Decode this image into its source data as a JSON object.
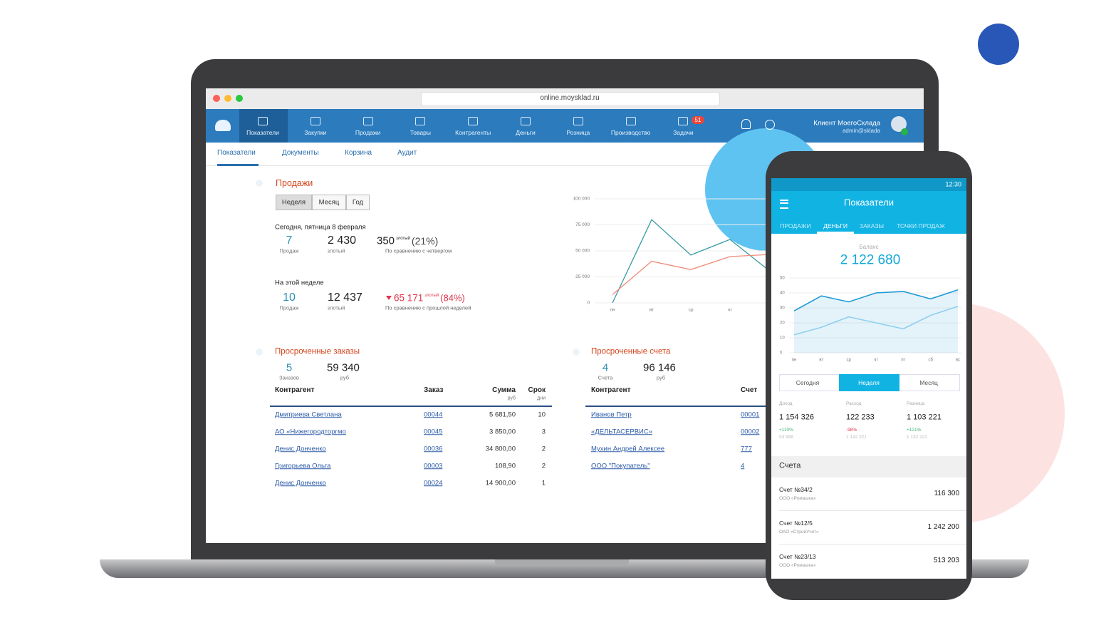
{
  "browser": {
    "url": "online.moysklad.ru"
  },
  "nav": {
    "items": [
      "Показатели",
      "Закупки",
      "Продажи",
      "Товары",
      "Контрагенты",
      "Деньги",
      "Розница",
      "Производство",
      "Задачи"
    ],
    "badge": "51",
    "user_name": "Клиент МоегоСклада",
    "user_login": "admin@sklada"
  },
  "subtabs": [
    "Показатели",
    "Документы",
    "Корзина",
    "Аудит"
  ],
  "sales": {
    "title": "Продажи",
    "periods": [
      "Неделя",
      "Месяц",
      "Год"
    ],
    "today": {
      "heading": "Сегодня, пятница 8 февраля",
      "count": "7",
      "count_label": "Продаж",
      "amount": "2 430",
      "amount_label": "злотый",
      "diff": "350",
      "diff_unit": "злотый",
      "diff_percent": "(21%)",
      "diff_label": "По сравнению с четвергом"
    },
    "week": {
      "heading": "На этой неделе",
      "count": "10",
      "count_label": "Продаж",
      "amount": "12 437",
      "amount_label": "злотый",
      "diff": "65 171",
      "diff_unit": "злотый",
      "diff_percent": "(84%)",
      "diff_label": "По сравнению с прошлой неделей"
    }
  },
  "orders": {
    "title": "Просроченные заказы",
    "count": "5",
    "count_label": "Заказов",
    "amount": "59 340",
    "amount_label": "руб",
    "headers": [
      "Контрагент",
      "Заказ",
      "Сумма",
      "Срок"
    ],
    "header_units": [
      "руб",
      "дни"
    ],
    "rows": [
      [
        "Дмитриева Светлана",
        "00044",
        "5 681,50",
        "10"
      ],
      [
        "АО «Нижегородторгмо",
        "00045",
        "3 850,00",
        "3"
      ],
      [
        "Денис Донченко",
        "00036",
        "34 800,00",
        "2"
      ],
      [
        "Григорьева Ольга",
        "00003",
        "108,90",
        "2"
      ],
      [
        "Денис Донченко",
        "00024",
        "14 900,00",
        "1"
      ]
    ]
  },
  "invoices": {
    "title": "Просроченные счета",
    "count": "4",
    "count_label": "Счета",
    "amount": "96 146",
    "amount_label": "руб",
    "headers": [
      "Контрагент",
      "Счет"
    ],
    "rows": [
      [
        "Иванов Петр",
        "00001"
      ],
      [
        "«ДЕЛЬТАСЕРВИС»",
        "00002"
      ],
      [
        "Мухин Андрей Алексее",
        "777"
      ],
      [
        "ООО \"Покупатель\"",
        "4"
      ]
    ]
  },
  "phone": {
    "time": "12:30",
    "title": "Показатели",
    "tabs": [
      "ПРОДАЖИ",
      "ДЕНЬГИ",
      "ЗАКАЗЫ",
      "ТОЧКИ ПРОДАЖ"
    ],
    "balance_label": "Баланс",
    "balance": "2 122 680",
    "periods": [
      "Сегодня",
      "Неделя",
      "Месяц"
    ],
    "stats": [
      {
        "label": "Доход",
        "value": "1 154 326",
        "change": "+110%",
        "prev": "53 998"
      },
      {
        "label": "Расход",
        "value": "122 233",
        "change": "-98%",
        "prev": "1 132 221"
      },
      {
        "label": "Разница",
        "value": "1 103 221",
        "change": "+121%",
        "prev": "1 132 221"
      }
    ],
    "accounts_title": "Счета",
    "accounts": [
      {
        "name": "Счет №34/2",
        "company": "ООО «Ромашка»",
        "amount": "116 300"
      },
      {
        "name": "Счет №12/5",
        "company": "ОАО «СтройУчет»",
        "amount": "1 242 200"
      },
      {
        "name": "Счет №23/13",
        "company": "ООО «Ромашка»",
        "amount": "513 203"
      }
    ]
  },
  "chart_data": [
    {
      "type": "line",
      "categories": [
        "пн",
        "вт",
        "ср",
        "чт",
        null
      ],
      "series": [
        {
          "color": "#3a9aa6",
          "values": [
            0,
            80000,
            46000,
            61000,
            31000
          ]
        },
        {
          "color": "#f08a78",
          "values": [
            8000,
            40000,
            32000,
            44500,
            46500
          ]
        }
      ],
      "ylim": [
        0,
        100000
      ],
      "yticks": [
        0,
        {
          "value": 25000,
          "label": "25 000"
        },
        {
          "value": 50000,
          "label": "50 000"
        },
        {
          "value": 75000,
          "label": "75 000"
        },
        {
          "value": 100000,
          "label": "100 000"
        }
      ]
    },
    {
      "type": "area",
      "categories": [
        "пн",
        "вт",
        "ср",
        "чт",
        "пт",
        "сб",
        "вс"
      ],
      "series": [
        {
          "color": "#1e9ad6",
          "values": [
            28,
            38,
            34,
            40,
            41,
            36,
            42
          ]
        },
        {
          "color": "#8fd0ee",
          "values": [
            12,
            17,
            24,
            20,
            16,
            25,
            31
          ]
        }
      ],
      "ylim": [
        0,
        50
      ],
      "yticks": [
        0,
        10,
        20,
        30,
        40,
        50
      ]
    }
  ]
}
